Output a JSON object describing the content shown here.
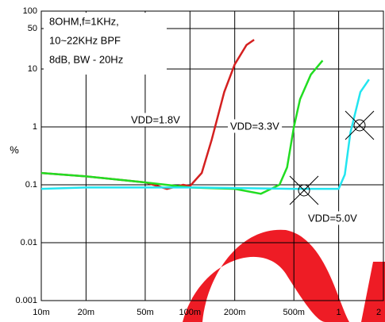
{
  "chart_data": {
    "type": "line",
    "log_x": true,
    "log_y": true,
    "grid": true,
    "ylabel": "%",
    "notes": [
      "8OHM,f=1KHz,",
      "10~22KHz BPF",
      "8dB, BW - 20Hz"
    ],
    "xlim": [
      0.01,
      2
    ],
    "xticks": [
      {
        "value": 0.01,
        "label": "10m"
      },
      {
        "value": 0.02,
        "label": "20m"
      },
      {
        "value": 0.05,
        "label": "50m"
      },
      {
        "value": 0.1,
        "label": "100m"
      },
      {
        "value": 0.2,
        "label": "200m"
      },
      {
        "value": 0.5,
        "label": "500m"
      },
      1,
      2
    ],
    "ylim": [
      0.001,
      100
    ],
    "yticks": [
      0.001,
      0.01,
      0.1,
      1,
      10,
      50,
      100
    ],
    "series": [
      {
        "name": "VDD=1.8V",
        "color": "#d42020",
        "x": [
          0.01,
          0.02,
          0.05,
          0.07,
          0.09,
          0.1,
          0.12,
          0.14,
          0.17,
          0.2,
          0.24,
          0.27
        ],
        "values": [
          0.16,
          0.14,
          0.11,
          0.085,
          0.1,
          0.095,
          0.16,
          0.6,
          4,
          12,
          26,
          32
        ]
      },
      {
        "name": "VDD=3.3V",
        "color": "#22dd22",
        "x": [
          0.01,
          0.02,
          0.05,
          0.1,
          0.2,
          0.3,
          0.4,
          0.45,
          0.5,
          0.55,
          0.65,
          0.78
        ],
        "values": [
          0.16,
          0.14,
          0.11,
          0.09,
          0.085,
          0.07,
          0.1,
          0.2,
          1,
          3,
          8,
          14
        ]
      },
      {
        "name": "VDD=5.0V",
        "color": "#22e5f0",
        "x": [
          0.01,
          0.02,
          0.05,
          0.1,
          0.5,
          1,
          1.1,
          1.2,
          1.4,
          1.6
        ],
        "values": [
          0.085,
          0.09,
          0.09,
          0.09,
          0.085,
          0.085,
          0.15,
          0.8,
          4,
          6.6
        ]
      }
    ]
  }
}
